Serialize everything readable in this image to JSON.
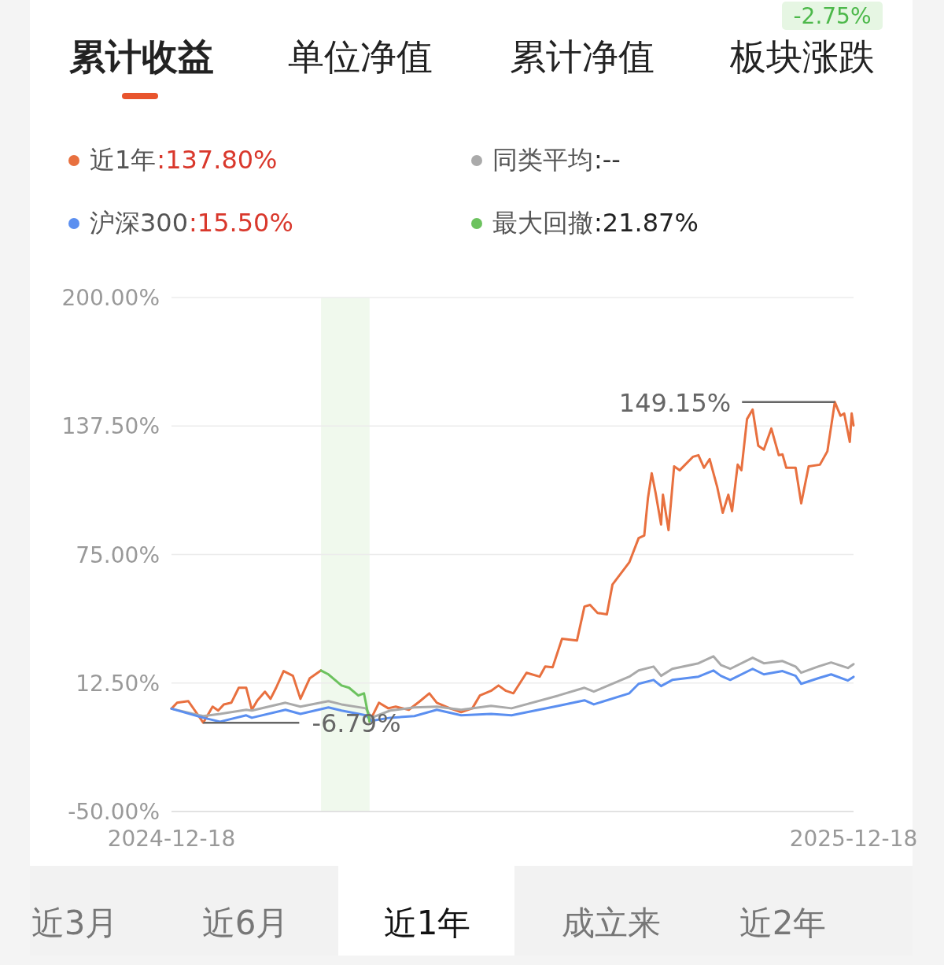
{
  "chart_data": {
    "type": "line",
    "annotations": [
      "累计收益",
      "单位净值",
      "累计净值",
      "板块涨跌",
      "-2.75%",
      ":137.80%",
      ":--",
      ":15.50%",
      ":21.87%",
      {
        "text": "149.15%",
        "x": "2025-12-08",
        "y": 149.15
      },
      {
        "text": "-6.79%",
        "x": "2025-01-04",
        "y": -6.79
      },
      "近3月",
      "近6月",
      "近1年",
      "成立来",
      "近2年"
    ],
    "x": [
      "2024-12-18",
      "2025-01-04",
      "2025-01-13",
      "2025-01-27",
      "2025-01-30",
      "2025-02-17",
      "2025-02-25",
      "2025-03-12",
      "2025-03-19",
      "2025-04-01",
      "2025-04-04",
      "2025-04-14",
      "2025-04-27",
      "2025-05-09",
      "2025-05-22",
      "2025-06-07",
      "2025-06-18",
      "2025-07-13",
      "2025-07-27",
      "2025-08-01",
      "2025-08-20",
      "2025-08-25",
      "2025-09-02",
      "2025-09-06",
      "2025-09-12",
      "2025-09-26",
      "2025-10-04",
      "2025-10-08",
      "2025-10-13",
      "2025-10-25",
      "2025-10-31",
      "2025-11-10",
      "2025-11-17",
      "2025-11-20",
      "2025-11-29",
      "2025-12-06",
      "2025-12-15",
      "2025-12-18"
    ],
    "series": [
      {
        "name": "近1年",
        "color": "#e8703f",
        "x": [
          "2024-12-18",
          "2024-12-21",
          "2024-12-27",
          "2025-01-04",
          "2025-01-09",
          "2025-01-12",
          "2025-01-15",
          "2025-01-19",
          "2025-01-23",
          "2025-01-27",
          "2025-01-30",
          "2025-02-02",
          "2025-02-06",
          "2025-02-09",
          "2025-02-12",
          "2025-02-16",
          "2025-02-21",
          "2025-02-25",
          "2025-03-02",
          "2025-03-08",
          "2025-03-12",
          "2025-03-19",
          "2025-03-23",
          "2025-03-28",
          "2025-03-31",
          "2025-04-03",
          "2025-04-08",
          "2025-04-13",
          "2025-04-17",
          "2025-04-24",
          "2025-04-30",
          "2025-05-05",
          "2025-05-09",
          "2025-05-16",
          "2025-05-22",
          "2025-05-28",
          "2025-06-01",
          "2025-06-07",
          "2025-06-11",
          "2025-06-15",
          "2025-06-19",
          "2025-06-26",
          "2025-07-03",
          "2025-07-06",
          "2025-07-10",
          "2025-07-15",
          "2025-07-23",
          "2025-07-27",
          "2025-07-30",
          "2025-08-03",
          "2025-08-08",
          "2025-08-11",
          "2025-08-20",
          "2025-08-25",
          "2025-08-28",
          "2025-08-30",
          "2025-09-01",
          "2025-09-03",
          "2025-09-06",
          "2025-09-07",
          "2025-09-10",
          "2025-09-13",
          "2025-09-16",
          "2025-09-23",
          "2025-09-26",
          "2025-09-29",
          "2025-10-02",
          "2025-10-06",
          "2025-10-09",
          "2025-10-12",
          "2025-10-14",
          "2025-10-17",
          "2025-10-19",
          "2025-10-22",
          "2025-10-25",
          "2025-10-28",
          "2025-10-31",
          "2025-11-04",
          "2025-11-08",
          "2025-11-10",
          "2025-11-12",
          "2025-11-17",
          "2025-11-20",
          "2025-11-24",
          "2025-11-30",
          "2025-12-04",
          "2025-12-08",
          "2025-12-11",
          "2025-12-13",
          "2025-12-16",
          "2025-12-17",
          "2025-12-18"
        ],
        "values": [
          0,
          2.9,
          3.7,
          -6.79,
          1.0,
          -0.9,
          2.1,
          2.9,
          10.2,
          10.2,
          -0.5,
          4.1,
          8.3,
          4.8,
          10.2,
          18.3,
          16.0,
          4.8,
          14.8,
          18.6,
          null,
          null,
          null,
          null,
          null,
          -6.3,
          2.9,
          0.2,
          1.0,
          -0.5,
          3.7,
          7.5,
          2.9,
          0.2,
          -1.7,
          0.2,
          6.4,
          8.7,
          11.3,
          8.7,
          7.5,
          17.5,
          15.6,
          20.5,
          20.2,
          34.0,
          33.2,
          49.7,
          50.5,
          46.6,
          45.9,
          60.4,
          71.2,
          83.0,
          84.2,
          102.6,
          114.5,
          105.3,
          89.6,
          104.1,
          86.9,
          117.9,
          116.0,
          122.5,
          123.3,
          117.2,
          121.4,
          108.0,
          95.3,
          104.1,
          96.1,
          118.7,
          116.0,
          140.9,
          145.5,
          127.9,
          126.0,
          136.3,
          123.3,
          123.7,
          117.2,
          117.2,
          99.9,
          117.9,
          118.7,
          125.2,
          149.15,
          142.5,
          143.6,
          129.8,
          143.6,
          137.8
        ]
      },
      {
        "name": "同类平均",
        "color": "#aaaaaa",
        "values": [
          0,
          -3.6,
          -2.5,
          -0.5,
          -0.9,
          2.9,
          1.0,
          3.7,
          2.1,
          0.2,
          -4.4,
          -0.9,
          0.6,
          1.0,
          -0.5,
          1.4,
          0.2,
          6.4,
          10.2,
          8.3,
          15.6,
          18.6,
          20.5,
          16.0,
          19.4,
          22.1,
          25.5,
          21.3,
          19.4,
          24.8,
          22.1,
          23.2,
          20.5,
          17.5,
          20.5,
          22.5,
          19.8,
          21.7
        ]
      },
      {
        "name": "沪深300",
        "color": "#5b8ff0",
        "values": [
          0,
          -4.4,
          -6.3,
          -3.2,
          -4.4,
          -0.5,
          -2.5,
          0.6,
          -0.9,
          -3.2,
          -5.9,
          -4.4,
          -3.6,
          -0.5,
          -3.2,
          -2.5,
          -3.2,
          1.4,
          4.1,
          2.1,
          7.5,
          12.1,
          14.0,
          11.0,
          14.0,
          15.6,
          18.6,
          16.0,
          14.0,
          19.4,
          16.7,
          18.3,
          16.0,
          12.1,
          14.8,
          16.7,
          13.7,
          15.5
        ]
      },
      {
        "name": "最大回撤",
        "color": "#6cc25e",
        "x": [
          "2025-03-08",
          "2025-03-12",
          "2025-03-19",
          "2025-03-23",
          "2025-03-28",
          "2025-03-31",
          "2025-04-03"
        ],
        "values": [
          18.6,
          16.7,
          11.3,
          10.2,
          6.4,
          7.5,
          -6.3
        ]
      }
    ],
    "bands": [
      {
        "axis": "x",
        "from": "2025-03-08",
        "to": "2025-04-03",
        "label": null,
        "color": "#e9f6e6"
      }
    ],
    "xlim": [
      "2024-12-18",
      "2025-12-18"
    ],
    "xticks": [
      {
        "value": "2024-12-18",
        "label": "2024-12-18"
      },
      {
        "value": "2025-12-18",
        "label": "2025-12-18"
      }
    ],
    "ylim": [
      -50,
      200
    ],
    "yticks": [
      {
        "value": -50,
        "label": "-50.00%"
      },
      {
        "value": 12.5,
        "label": "12.50%"
      },
      {
        "value": 75,
        "label": "75.00%"
      },
      {
        "value": 137.5,
        "label": "137.50%"
      },
      {
        "value": 200,
        "label": "200.00%"
      }
    ],
    "grid": "y",
    "legend": "top",
    "marker": "none",
    "line_style": "solid"
  }
}
